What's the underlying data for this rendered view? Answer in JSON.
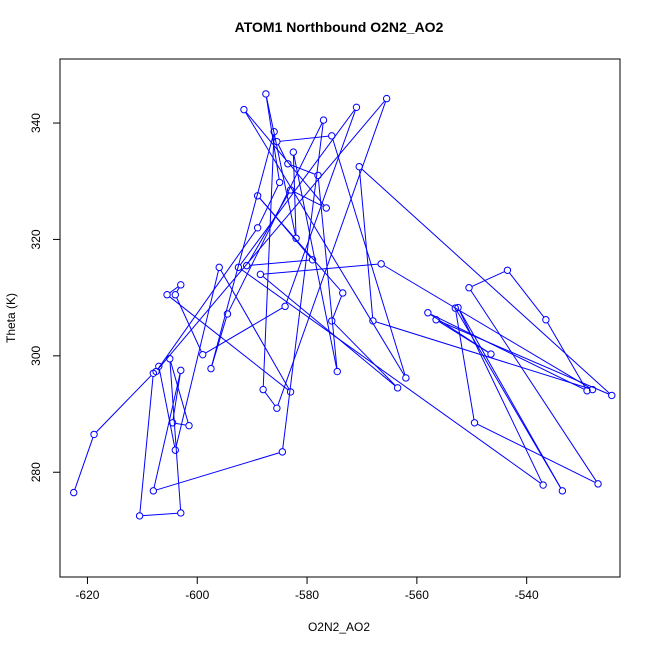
{
  "chart_data": {
    "type": "line",
    "title": "ATOM1 Northbound O2N2_AO2",
    "xlabel": "O2N2_AO2",
    "ylabel": "Theta (K)",
    "xlim": [
      -625,
      -523
    ],
    "ylim": [
      262,
      351
    ],
    "xticks": [
      -620,
      -600,
      -580,
      -560,
      -540
    ],
    "yticks": [
      280,
      300,
      320,
      340
    ],
    "grid": false,
    "series_color": "#0000ff",
    "series": [
      {
        "markers": "open-circle",
        "x": [
          -622.5,
          -618.8,
          -608,
          -610.5,
          -603,
          -605,
          -601.5,
          -604.5,
          -603,
          -608,
          -584.5,
          -577,
          -594.5,
          -597.5,
          -586,
          -588,
          -585.5,
          -565.5,
          -607.5,
          -589,
          -585,
          -587.5,
          -582,
          -582.5,
          -574.5,
          -578,
          -583.5,
          -585.5,
          -575.5,
          -562,
          -591.5,
          -576.5,
          -583,
          -591,
          -579,
          -589,
          -573.5,
          -575.5,
          -563.5,
          -588.5,
          -566.5,
          -528,
          -568,
          -570.5,
          -524.5,
          -556.5,
          -546.5,
          -558,
          -529,
          -536.5,
          -543.5,
          -550.5,
          -527,
          -549.5,
          -553,
          -533.5,
          -552.5,
          -537,
          -592.5,
          -571,
          -584,
          -599,
          -604,
          -603,
          -605.5,
          -583,
          -596,
          -604,
          -607
        ],
        "y": [
          276.5,
          286.5,
          297,
          272.5,
          273,
          299.5,
          288,
          288.5,
          297.5,
          276.8,
          283.5,
          340.5,
          307.2,
          297.8,
          338.5,
          294.2,
          291,
          344.2,
          297.3,
          322,
          329.8,
          345,
          320.2,
          335,
          297.3,
          331,
          333,
          336.8,
          337.8,
          296.2,
          342.3,
          325.4,
          328.5,
          315.5,
          316.5,
          327.5,
          310.8,
          306,
          294.5,
          314,
          315.8,
          294.2,
          306,
          332.5,
          293.2,
          306.2,
          300.3,
          307.4,
          294,
          306.2,
          314.7,
          311.7,
          278,
          288.5,
          308.2,
          276.8,
          308.3,
          277.8,
          315.2,
          342.7,
          308.5,
          300.2,
          310.5,
          312.2,
          310.5,
          293.8,
          315.2,
          283.8,
          298.2
        ]
      }
    ]
  }
}
